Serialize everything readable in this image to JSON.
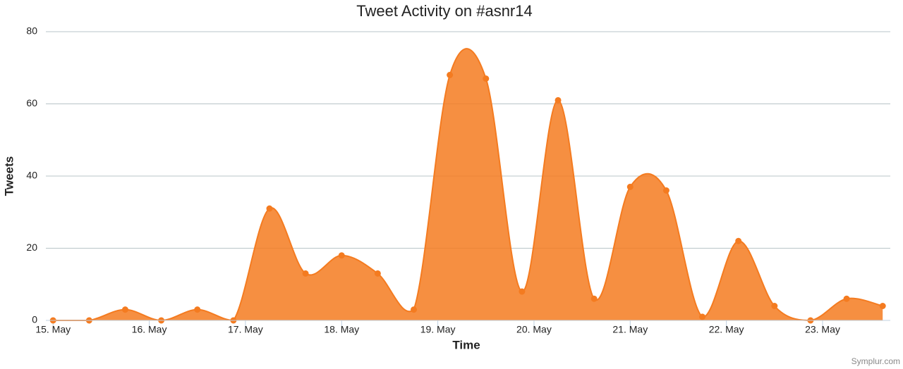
{
  "chart_data": {
    "type": "area-spline",
    "title": "Tweet Activity on #asnr14",
    "x_label": "Time",
    "y_label": "Tweets",
    "credits": "Symplur.com",
    "x": [
      0,
      9,
      18,
      27,
      36,
      45,
      54,
      63,
      72,
      81,
      90,
      99,
      108,
      117,
      126,
      135,
      144,
      153,
      162,
      171,
      180,
      189,
      198,
      207
    ],
    "series": [
      {
        "name": "Tweets",
        "color": "#f47b20",
        "values": [
          0,
          0,
          3,
          0,
          3,
          0,
          31,
          13,
          18,
          13,
          3,
          68,
          67,
          8,
          61,
          6,
          37,
          36,
          1,
          22,
          4,
          0,
          6,
          4
        ]
      }
    ],
    "xlim": [
      -1.8,
      208.9
    ],
    "xticks": [
      {
        "value": 0,
        "label": "15. May"
      },
      {
        "value": 24,
        "label": "16. May"
      },
      {
        "value": 48,
        "label": "17. May"
      },
      {
        "value": 72,
        "label": "18. May"
      },
      {
        "value": 96,
        "label": "19. May"
      },
      {
        "value": 120,
        "label": "20. May"
      },
      {
        "value": 144,
        "label": "21. May"
      },
      {
        "value": 168,
        "label": "22. May"
      },
      {
        "value": 192,
        "label": "23. May"
      }
    ],
    "ylim": [
      0,
      80
    ],
    "yticks": [
      0,
      20,
      40,
      60,
      80
    ],
    "grid": true
  }
}
